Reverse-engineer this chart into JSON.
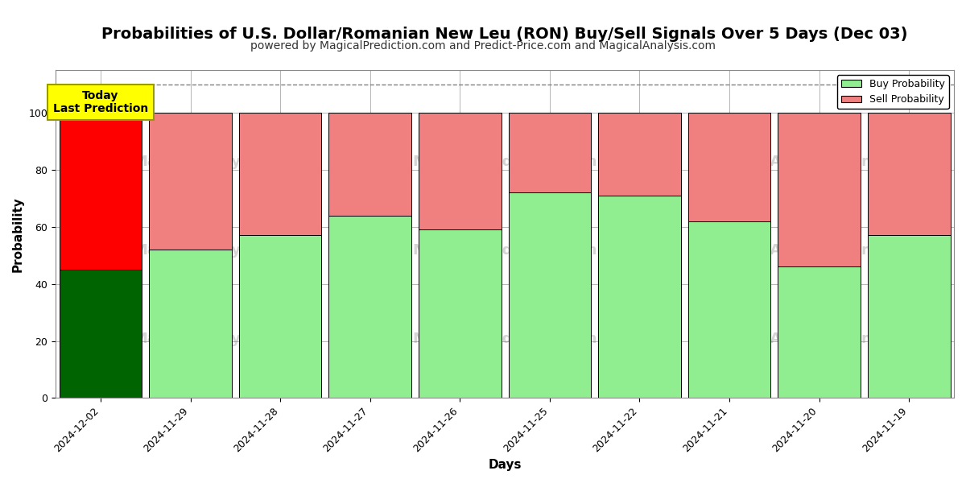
{
  "title": "Probabilities of U.S. Dollar/Romanian New Leu (RON) Buy/Sell Signals Over 5 Days (Dec 03)",
  "subtitle": "powered by MagicalPrediction.com and Predict-Price.com and MagicalAnalysis.com",
  "xlabel": "Days",
  "ylabel": "Probability",
  "categories": [
    "2024-12-02",
    "2024-11-29",
    "2024-11-28",
    "2024-11-27",
    "2024-11-26",
    "2024-11-25",
    "2024-11-22",
    "2024-11-21",
    "2024-11-20",
    "2024-11-19"
  ],
  "buy_values": [
    45,
    52,
    57,
    64,
    59,
    72,
    71,
    62,
    46,
    57
  ],
  "sell_values": [
    55,
    48,
    43,
    36,
    41,
    28,
    29,
    38,
    54,
    43
  ],
  "today_bar_buy_color": "#006400",
  "today_bar_sell_color": "#FF0000",
  "other_bar_buy_color": "#90EE90",
  "other_bar_sell_color": "#F08080",
  "bar_edge_color": "#000000",
  "today_annotation_bg": "#FFFF00",
  "today_annotation_text": "Today\nLast Prediction",
  "legend_buy_label": "Buy Probability",
  "legend_sell_label": "Sell Probability",
  "ylim": [
    0,
    115
  ],
  "yticks": [
    0,
    20,
    40,
    60,
    80,
    100
  ],
  "dashed_line_y": 110,
  "background_color": "#ffffff",
  "grid_color": "#aaaaaa",
  "title_fontsize": 14,
  "subtitle_fontsize": 10,
  "axis_label_fontsize": 11,
  "tick_fontsize": 9
}
